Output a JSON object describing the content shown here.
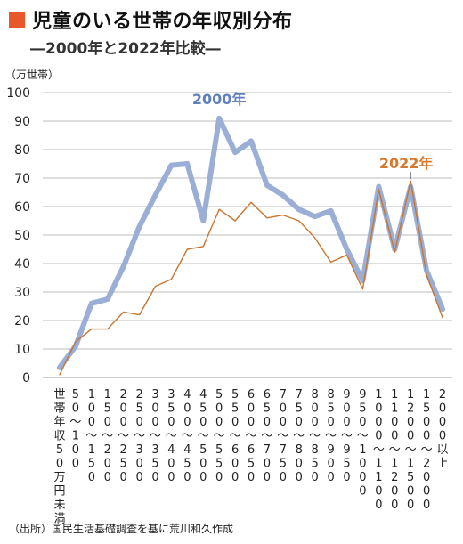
{
  "header": {
    "title": "児童のいる世帯の年収別分布",
    "subtitle": "―2000年と2022年比較―"
  },
  "source": "（出所）国民生活基礎調査を基に荒川和久作成",
  "colors": {
    "accent": "#e8572a",
    "series_2000": "#9aaed6",
    "series_2022": "#c8752f",
    "label_2000": "#5f7fbf",
    "label_2022": "#d6782d"
  },
  "chart_data": {
    "type": "line",
    "unit_label": "（万世帯）",
    "ylim": [
      0,
      100
    ],
    "yticks": [
      0,
      10,
      20,
      30,
      40,
      50,
      60,
      70,
      80,
      90,
      100
    ],
    "grid": true,
    "categories": [
      "世帯年収50万円未満",
      "50〜100",
      "100〜150",
      "150〜200",
      "200〜250",
      "250〜300",
      "300〜350",
      "350〜400",
      "400〜450",
      "450〜500",
      "500〜550",
      "550〜600",
      "600〜650",
      "650〜700",
      "700〜750",
      "750〜800",
      "800〜850",
      "850〜900",
      "900〜950",
      "950〜1000",
      "1000〜1100",
      "1100〜1200",
      "1200〜1500",
      "1500〜2000",
      "2000以上"
    ],
    "series": [
      {
        "name": "2000年",
        "values": [
          3.5,
          11,
          26,
          27.5,
          39,
          53,
          64,
          74.5,
          75,
          55,
          91,
          79,
          83,
          67.5,
          64,
          59,
          56.5,
          58.5,
          45,
          34,
          67,
          45,
          67,
          37.5,
          24
        ]
      },
      {
        "name": "2022年",
        "values": [
          1,
          12.5,
          17,
          17,
          23,
          22,
          32,
          34.5,
          45,
          46,
          59,
          55,
          61.5,
          56,
          57,
          55,
          49,
          40.5,
          43,
          31,
          66,
          44,
          69,
          36,
          21
        ]
      }
    ]
  }
}
